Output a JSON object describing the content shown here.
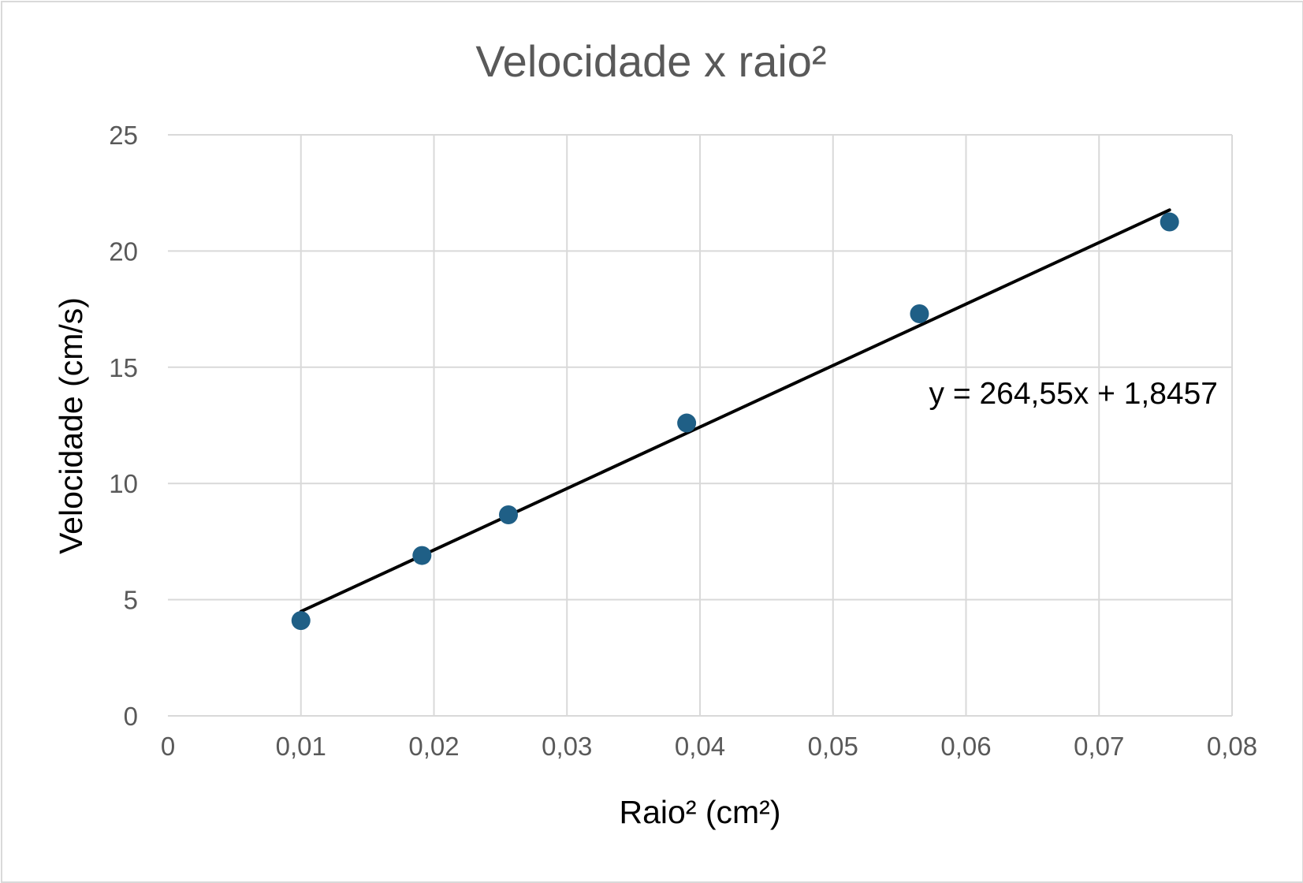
{
  "chart_data": {
    "type": "scatter",
    "title": "Velocidade x raio²",
    "xlabel": "Raio² (cm²)",
    "ylabel": "Velocidade (cm/s)",
    "xlim": [
      0,
      0.08
    ],
    "ylim": [
      0,
      25
    ],
    "x_ticks": [
      "0",
      "0,01",
      "0,02",
      "0,03",
      "0,04",
      "0,05",
      "0,06",
      "0,07",
      "0,08"
    ],
    "y_ticks": [
      "0",
      "5",
      "10",
      "15",
      "20",
      "25"
    ],
    "grid": true,
    "series": [
      {
        "points": [
          {
            "x": 0.01,
            "y": 4.1
          },
          {
            "x": 0.0191,
            "y": 6.9
          },
          {
            "x": 0.0256,
            "y": 8.65
          },
          {
            "x": 0.039,
            "y": 12.6
          },
          {
            "x": 0.0565,
            "y": 17.3
          },
          {
            "x": 0.0753,
            "y": 21.25
          }
        ],
        "color": "#1f5f86"
      }
    ],
    "trendline": {
      "slope": 264.55,
      "intercept": 1.8457,
      "x_range": [
        0.01,
        0.0753
      ],
      "equation": "y = 264,55x + 1,8457",
      "color": "#000000"
    }
  }
}
